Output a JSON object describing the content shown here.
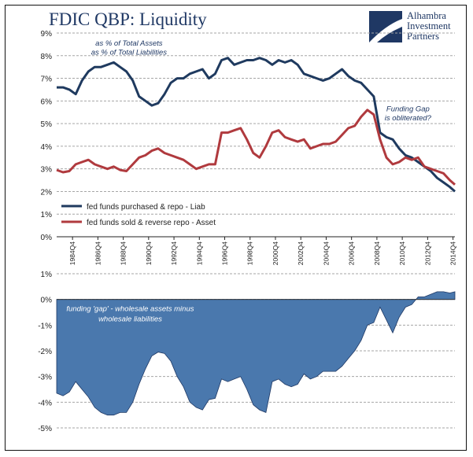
{
  "header": {
    "title": "FDIC QBP: Liquidity",
    "logo_lines": [
      "Alhambra",
      "Investment",
      "Partners"
    ]
  },
  "colors": {
    "liab": "#1f3a5f",
    "asset": "#b03a3e",
    "gap_fill": "#4a78ad",
    "gap_stroke": "#1f3864",
    "grid": "#a6a6a6",
    "annotation": "#1f3864"
  },
  "chart_data": [
    {
      "type": "line",
      "title": "",
      "ylim": [
        0,
        9
      ],
      "yticks": [
        "0%",
        "1%",
        "2%",
        "3%",
        "4%",
        "5%",
        "6%",
        "7%",
        "8%",
        "9%"
      ],
      "xlim": [
        1983.5,
        2014.9
      ],
      "xticks": [
        "1984Q4",
        "1986Q4",
        "1988Q4",
        "1990Q4",
        "1992Q4",
        "1994Q4",
        "1996Q4",
        "1998Q4",
        "2000Q4",
        "2002Q4",
        "2004Q4",
        "2006Q4",
        "2008Q4",
        "2010Q4",
        "2012Q4",
        "2014Q4"
      ],
      "grid": "horizontal dashed",
      "legend": "lower-left",
      "annotations": [
        {
          "text": "as % of Total Assets",
          "x": 1989.2,
          "y": 8.45
        },
        {
          "text": "as % of Total Liabilities",
          "x": 1989.2,
          "y": 8.05
        },
        {
          "text": "Funding Gap",
          "x": 2011.2,
          "y": 5.55
        },
        {
          "text": "is obliterated?",
          "x": 2011.2,
          "y": 5.15
        }
      ],
      "x": [
        1983.5,
        1984,
        1984.5,
        1985,
        1985.5,
        1986,
        1986.5,
        1987,
        1987.5,
        1988,
        1988.5,
        1989,
        1989.5,
        1990,
        1990.5,
        1991,
        1991.5,
        1992,
        1992.5,
        1993,
        1993.5,
        1994,
        1994.5,
        1995,
        1995.5,
        1996,
        1996.5,
        1997,
        1997.5,
        1998,
        1998.5,
        1999,
        1999.5,
        2000,
        2000.5,
        2001,
        2001.5,
        2002,
        2002.5,
        2003,
        2003.5,
        2004,
        2004.5,
        2005,
        2005.5,
        2006,
        2006.5,
        2007,
        2007.5,
        2008,
        2008.5,
        2009,
        2009.5,
        2010,
        2010.5,
        2011,
        2011.5,
        2012,
        2012.5,
        2013,
        2013.5,
        2014,
        2014.5,
        2014.9
      ],
      "series": [
        {
          "name": "fed funds purchased & repo - Liab",
          "values": [
            6.6,
            6.6,
            6.5,
            6.3,
            6.9,
            7.3,
            7.5,
            7.5,
            7.6,
            7.7,
            7.5,
            7.3,
            6.9,
            6.2,
            6.0,
            5.8,
            5.9,
            6.3,
            6.8,
            7.0,
            7.0,
            7.2,
            7.3,
            7.4,
            7.0,
            7.2,
            7.8,
            7.9,
            7.6,
            7.7,
            7.8,
            7.8,
            7.9,
            7.8,
            7.6,
            7.8,
            7.7,
            7.8,
            7.6,
            7.2,
            7.1,
            7.0,
            6.9,
            7.0,
            7.2,
            7.4,
            7.1,
            6.9,
            6.8,
            6.5,
            6.2,
            4.6,
            4.4,
            4.3,
            3.9,
            3.6,
            3.5,
            3.3,
            3.1,
            2.9,
            2.6,
            2.4,
            2.2,
            2.0
          ]
        },
        {
          "name": "fed funds sold & reverse repo - Asset",
          "values": [
            2.95,
            2.85,
            2.9,
            3.2,
            3.3,
            3.4,
            3.2,
            3.1,
            3.0,
            3.1,
            2.95,
            2.9,
            3.2,
            3.5,
            3.6,
            3.8,
            3.9,
            3.7,
            3.6,
            3.5,
            3.4,
            3.2,
            3.0,
            3.1,
            3.2,
            3.2,
            4.6,
            4.6,
            4.7,
            4.8,
            4.3,
            3.7,
            3.5,
            4.0,
            4.6,
            4.7,
            4.4,
            4.3,
            4.2,
            4.3,
            3.9,
            4.0,
            4.1,
            4.1,
            4.2,
            4.5,
            4.8,
            4.9,
            5.3,
            5.6,
            5.4,
            4.3,
            3.5,
            3.2,
            3.3,
            3.5,
            3.4,
            3.5,
            3.1,
            3.0,
            2.9,
            2.8,
            2.5,
            2.3
          ]
        }
      ]
    },
    {
      "type": "area",
      "title": "",
      "ylim": [
        -5,
        1
      ],
      "yticks": [
        "-5%",
        "-4%",
        "-3%",
        "-2%",
        "-1%",
        "0%",
        "1%"
      ],
      "xlim": [
        1983.5,
        2014.9
      ],
      "grid": "horizontal dashed",
      "annotations": [
        {
          "text": "funding 'gap' - wholesale assets minus",
          "x": 1989.3,
          "y": -0.45
        },
        {
          "text": "wholesale liabilities",
          "x": 1989.3,
          "y": -0.85
        }
      ],
      "x": [
        1983.5,
        1984,
        1984.5,
        1985,
        1985.5,
        1986,
        1986.5,
        1987,
        1987.5,
        1988,
        1988.5,
        1989,
        1989.5,
        1990,
        1990.5,
        1991,
        1991.5,
        1992,
        1992.5,
        1993,
        1993.5,
        1994,
        1994.5,
        1995,
        1995.5,
        1996,
        1996.5,
        1997,
        1997.5,
        1998,
        1998.5,
        1999,
        1999.5,
        2000,
        2000.5,
        2001,
        2001.5,
        2002,
        2002.5,
        2003,
        2003.5,
        2004,
        2004.5,
        2005,
        2005.5,
        2006,
        2006.5,
        2007,
        2007.5,
        2008,
        2008.5,
        2009,
        2009.5,
        2010,
        2010.5,
        2011,
        2011.5,
        2012,
        2012.5,
        2013,
        2013.5,
        2014,
        2014.5,
        2014.9
      ],
      "series": [
        {
          "name": "",
          "values": [
            -3.65,
            -3.75,
            -3.6,
            -3.2,
            -3.5,
            -3.8,
            -4.2,
            -4.4,
            -4.5,
            -4.5,
            -4.4,
            -4.4,
            -4.0,
            -3.3,
            -2.7,
            -2.2,
            -2.05,
            -2.1,
            -2.4,
            -3.0,
            -3.4,
            -4.0,
            -4.2,
            -4.3,
            -3.9,
            -3.85,
            -3.1,
            -3.2,
            -3.1,
            -3.0,
            -3.5,
            -4.1,
            -4.3,
            -4.4,
            -3.2,
            -3.1,
            -3.3,
            -3.4,
            -3.3,
            -2.9,
            -3.1,
            -3.0,
            -2.8,
            -2.8,
            -2.8,
            -2.6,
            -2.3,
            -2.0,
            -1.6,
            -1.0,
            -0.9,
            -0.3,
            -0.8,
            -1.3,
            -0.7,
            -0.3,
            -0.2,
            0.1,
            0.1,
            0.2,
            0.3,
            0.3,
            0.25,
            0.3
          ]
        }
      ]
    }
  ]
}
